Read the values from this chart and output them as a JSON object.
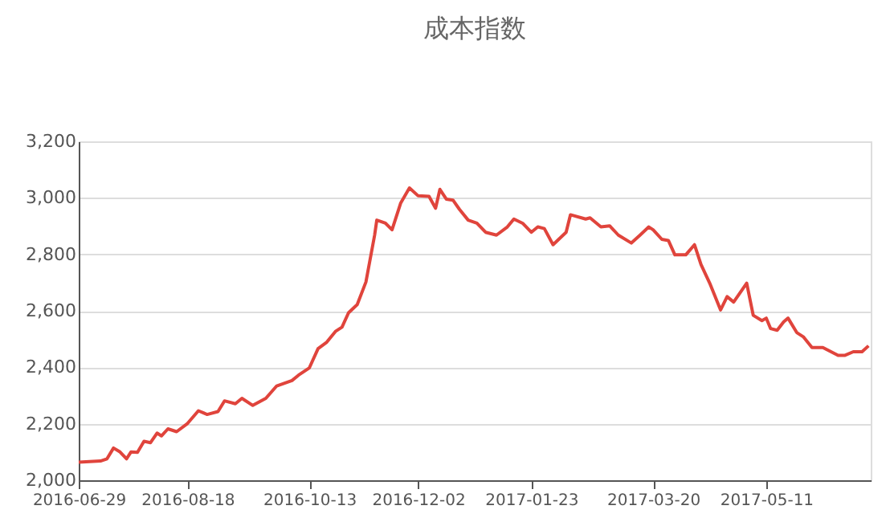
{
  "chart_data": {
    "type": "line",
    "title": "成本指数",
    "x": [
      "2016-06-29",
      "2016-07-09",
      "2016-07-12",
      "2016-07-15",
      "2016-07-18",
      "2016-07-21",
      "2016-07-23",
      "2016-07-26",
      "2016-07-29",
      "2016-08-01",
      "2016-08-04",
      "2016-08-06",
      "2016-08-09",
      "2016-08-13",
      "2016-08-18",
      "2016-08-23",
      "2016-08-27",
      "2016-09-01",
      "2016-09-04",
      "2016-09-09",
      "2016-09-12",
      "2016-09-17",
      "2016-09-23",
      "2016-09-28",
      "2016-10-05",
      "2016-10-08",
      "2016-10-13",
      "2016-10-17",
      "2016-10-21",
      "2016-10-25",
      "2016-10-28",
      "2016-10-31",
      "2016-11-04",
      "2016-11-08",
      "2016-11-12",
      "2016-11-13",
      "2016-11-17",
      "2016-11-20",
      "2016-11-24",
      "2016-11-28",
      "2016-12-02",
      "2016-12-07",
      "2016-12-10",
      "2016-12-12",
      "2016-12-15",
      "2016-12-18",
      "2016-12-21",
      "2016-12-25",
      "2016-12-29",
      "2017-01-02",
      "2017-01-07",
      "2017-01-12",
      "2017-01-15",
      "2017-01-19",
      "2017-01-23",
      "2017-01-26",
      "2017-01-29",
      "2017-02-02",
      "2017-02-08",
      "2017-02-10",
      "2017-02-17",
      "2017-02-19",
      "2017-02-24",
      "2017-02-28",
      "2017-03-04",
      "2017-03-10",
      "2017-03-14",
      "2017-03-18",
      "2017-03-20",
      "2017-03-24",
      "2017-03-27",
      "2017-03-30",
      "2017-04-04",
      "2017-04-08",
      "2017-04-11",
      "2017-04-15",
      "2017-04-20",
      "2017-04-23",
      "2017-04-26",
      "2017-05-02",
      "2017-05-05",
      "2017-05-09",
      "2017-05-11",
      "2017-05-13",
      "2017-05-16",
      "2017-05-19",
      "2017-05-21",
      "2017-05-25",
      "2017-05-28",
      "2017-06-01",
      "2017-06-06",
      "2017-06-13",
      "2017-06-16",
      "2017-06-20",
      "2017-06-24",
      "2017-06-27"
    ],
    "series": [
      {
        "color": "#e0443c",
        "values": [
          2064,
          2068,
          2076,
          2114,
          2100,
          2076,
          2100,
          2099,
          2138,
          2133,
          2167,
          2157,
          2182,
          2172,
          2201,
          2246,
          2233,
          2243,
          2281,
          2271,
          2290,
          2265,
          2290,
          2334,
          2353,
          2372,
          2398,
          2466,
          2489,
          2527,
          2542,
          2593,
          2622,
          2702,
          2868,
          2921,
          2910,
          2887,
          2982,
          3035,
          3007,
          3005,
          2963,
          3030,
          2995,
          2992,
          2959,
          2921,
          2910,
          2878,
          2868,
          2897,
          2925,
          2910,
          2878,
          2897,
          2891,
          2834,
          2878,
          2940,
          2925,
          2929,
          2897,
          2901,
          2868,
          2840,
          2868,
          2897,
          2887,
          2853,
          2849,
          2798,
          2798,
          2834,
          2764,
          2698,
          2603,
          2650,
          2631,
          2698,
          2584,
          2565,
          2574,
          2537,
          2531,
          2561,
          2574,
          2523,
          2508,
          2470,
          2470,
          2442,
          2442,
          2455,
          2455,
          2476
        ]
      }
    ],
    "xlim": [
      "2016-06-29",
      "2017-06-28"
    ],
    "xticks": [
      "2016-06-29",
      "2016-08-18",
      "2016-10-13",
      "2016-12-02",
      "2017-01-23",
      "2017-03-20",
      "2017-05-11"
    ],
    "ylim": [
      2000,
      3200
    ],
    "yticks": [
      {
        "value": 2000,
        "label": "2,000"
      },
      {
        "value": 2200,
        "label": "2,200"
      },
      {
        "value": 2400,
        "label": "2,400"
      },
      {
        "value": 2600,
        "label": "2,600"
      },
      {
        "value": 2800,
        "label": "2,800"
      },
      {
        "value": 3000,
        "label": "3,000"
      },
      {
        "value": 3200,
        "label": "3,200"
      }
    ],
    "grid": "y",
    "marker": "none",
    "line_style": "solid",
    "legend": false
  }
}
